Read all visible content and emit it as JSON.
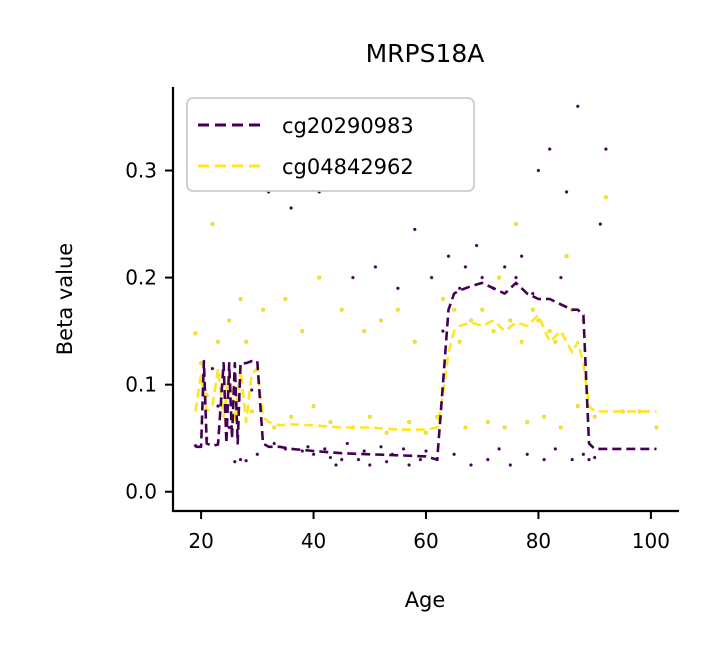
{
  "chart_data": {
    "type": "scatter",
    "title": "MRPS18A",
    "xlabel": "Age",
    "ylabel": "Beta value",
    "xlim": [
      15,
      105
    ],
    "ylim": [
      -0.018,
      0.378
    ],
    "xticks": [
      20,
      40,
      60,
      80,
      100
    ],
    "xtick_labels": [
      "20",
      "40",
      "60",
      "80",
      "100"
    ],
    "yticks": [
      0.0,
      0.1,
      0.2,
      0.3
    ],
    "ytick_labels": [
      "0.0",
      "0.1",
      "0.2",
      "0.3"
    ],
    "grid": false,
    "legend_position": "top-left",
    "series": [
      {
        "name": "cg20290983",
        "color": "#440154",
        "line_style": "dashed",
        "trend": {
          "x": [
            19,
            20,
            20.5,
            21,
            22,
            23,
            24,
            24.5,
            25,
            25.5,
            26,
            26.5,
            27,
            28,
            29,
            30,
            31,
            32,
            34,
            36,
            40,
            45,
            50,
            55,
            60,
            62,
            63,
            64,
            65,
            66,
            68,
            70,
            72,
            74,
            76,
            78,
            80,
            82,
            84,
            86,
            87,
            88,
            89,
            90,
            95,
            101
          ],
          "y": [
            0.042,
            0.042,
            0.122,
            0.045,
            0.043,
            0.044,
            0.12,
            0.045,
            0.12,
            0.05,
            0.12,
            0.045,
            0.12,
            0.12,
            0.122,
            0.122,
            0.045,
            0.042,
            0.042,
            0.04,
            0.038,
            0.036,
            0.035,
            0.034,
            0.033,
            0.03,
            0.1,
            0.17,
            0.185,
            0.188,
            0.192,
            0.195,
            0.19,
            0.185,
            0.195,
            0.185,
            0.18,
            0.18,
            0.175,
            0.17,
            0.17,
            0.165,
            0.045,
            0.04,
            0.04,
            0.04
          ]
        },
        "points": [
          [
            19,
            0.043
          ],
          [
            21,
            0.05
          ],
          [
            22,
            0.115
          ],
          [
            23,
            0.08
          ],
          [
            25,
            0.06
          ],
          [
            26,
            0.028
          ],
          [
            27,
            0.03
          ],
          [
            28,
            0.029
          ],
          [
            29,
            0.095
          ],
          [
            30,
            0.035
          ],
          [
            32,
            0.28
          ],
          [
            33,
            0.045
          ],
          [
            35,
            0.04
          ],
          [
            36,
            0.265
          ],
          [
            38,
            0.038
          ],
          [
            39,
            0.042
          ],
          [
            40,
            0.035
          ],
          [
            41,
            0.28
          ],
          [
            42,
            0.04
          ],
          [
            43,
            0.032
          ],
          [
            44,
            0.025
          ],
          [
            45,
            0.03
          ],
          [
            46,
            0.045
          ],
          [
            47,
            0.2
          ],
          [
            48,
            0.03
          ],
          [
            49,
            0.038
          ],
          [
            50,
            0.025
          ],
          [
            51,
            0.21
          ],
          [
            52,
            0.042
          ],
          [
            53,
            0.028
          ],
          [
            54,
            0.035
          ],
          [
            55,
            0.19
          ],
          [
            56,
            0.04
          ],
          [
            57,
            0.025
          ],
          [
            58,
            0.245
          ],
          [
            59,
            0.03
          ],
          [
            60,
            0.038
          ],
          [
            61,
            0.2
          ],
          [
            62,
            0.03
          ],
          [
            63,
            0.15
          ],
          [
            64,
            0.22
          ],
          [
            65,
            0.035
          ],
          [
            66,
            0.19
          ],
          [
            67,
            0.21
          ],
          [
            68,
            0.025
          ],
          [
            69,
            0.23
          ],
          [
            70,
            0.2
          ],
          [
            71,
            0.03
          ],
          [
            72,
            0.19
          ],
          [
            73,
            0.04
          ],
          [
            74,
            0.21
          ],
          [
            75,
            0.025
          ],
          [
            76,
            0.2
          ],
          [
            77,
            0.22
          ],
          [
            78,
            0.035
          ],
          [
            79,
            0.185
          ],
          [
            80,
            0.3
          ],
          [
            81,
            0.03
          ],
          [
            82,
            0.32
          ],
          [
            83,
            0.04
          ],
          [
            84,
            0.2
          ],
          [
            85,
            0.28
          ],
          [
            86,
            0.03
          ],
          [
            87,
            0.36
          ],
          [
            88,
            0.035
          ],
          [
            89,
            0.03
          ],
          [
            90,
            0.032
          ],
          [
            91,
            0.25
          ],
          [
            92,
            0.32
          ]
        ]
      },
      {
        "name": "cg04842962",
        "color": "#fde725",
        "line_style": "dashed",
        "trend": {
          "x": [
            19,
            20,
            21,
            22,
            23,
            24,
            25,
            26,
            27,
            28,
            29,
            30,
            31,
            32,
            34,
            36,
            40,
            45,
            50,
            55,
            60,
            62,
            63,
            64,
            65,
            66,
            68,
            70,
            72,
            74,
            76,
            78,
            80,
            82,
            84,
            86,
            87,
            88,
            89,
            90,
            95,
            101
          ],
          "y": [
            0.075,
            0.11,
            0.075,
            0.08,
            0.115,
            0.07,
            0.11,
            0.065,
            0.115,
            0.065,
            0.11,
            0.115,
            0.07,
            0.065,
            0.062,
            0.063,
            0.062,
            0.06,
            0.06,
            0.058,
            0.058,
            0.06,
            0.09,
            0.13,
            0.15,
            0.155,
            0.158,
            0.155,
            0.16,
            0.15,
            0.158,
            0.155,
            0.165,
            0.14,
            0.15,
            0.13,
            0.14,
            0.12,
            0.08,
            0.075,
            0.075,
            0.075
          ]
        },
        "points": [
          [
            19,
            0.148
          ],
          [
            20,
            0.12
          ],
          [
            21,
            0.09
          ],
          [
            22,
            0.25
          ],
          [
            23,
            0.14
          ],
          [
            24,
            0.1
          ],
          [
            25,
            0.16
          ],
          [
            27,
            0.18
          ],
          [
            28,
            0.14
          ],
          [
            29,
            0.075
          ],
          [
            31,
            0.17
          ],
          [
            33,
            0.06
          ],
          [
            35,
            0.18
          ],
          [
            36,
            0.07
          ],
          [
            38,
            0.15
          ],
          [
            40,
            0.08
          ],
          [
            41,
            0.2
          ],
          [
            43,
            0.065
          ],
          [
            45,
            0.17
          ],
          [
            47,
            0.06
          ],
          [
            49,
            0.15
          ],
          [
            50,
            0.07
          ],
          [
            52,
            0.16
          ],
          [
            53,
            0.055
          ],
          [
            55,
            0.17
          ],
          [
            57,
            0.065
          ],
          [
            58,
            0.14
          ],
          [
            60,
            0.055
          ],
          [
            62,
            0.07
          ],
          [
            63,
            0.18
          ],
          [
            65,
            0.17
          ],
          [
            66,
            0.14
          ],
          [
            67,
            0.06
          ],
          [
            68,
            0.16
          ],
          [
            70,
            0.17
          ],
          [
            71,
            0.065
          ],
          [
            72,
            0.15
          ],
          [
            73,
            0.2
          ],
          [
            74,
            0.06
          ],
          [
            75,
            0.16
          ],
          [
            76,
            0.25
          ],
          [
            77,
            0.14
          ],
          [
            78,
            0.065
          ],
          [
            79,
            0.17
          ],
          [
            80,
            0.16
          ],
          [
            81,
            0.07
          ],
          [
            82,
            0.15
          ],
          [
            83,
            0.14
          ],
          [
            84,
            0.06
          ],
          [
            85,
            0.22
          ],
          [
            86,
            0.17
          ],
          [
            87,
            0.08
          ],
          [
            88,
            0.16
          ],
          [
            90,
            0.07
          ],
          [
            92,
            0.275
          ],
          [
            95,
            0.075
          ],
          [
            98,
            0.075
          ],
          [
            101,
            0.06
          ]
        ]
      }
    ]
  }
}
